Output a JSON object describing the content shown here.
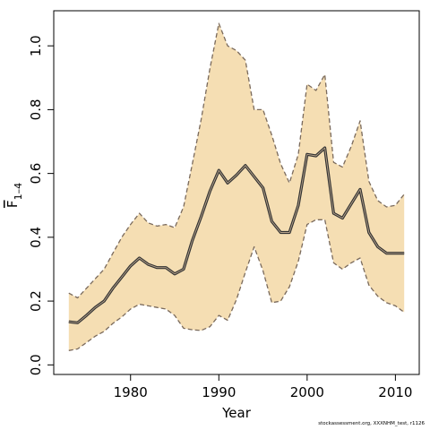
{
  "chart_data": {
    "type": "area",
    "xlabel": "Year",
    "ylabel_main": "F",
    "ylabel_sub": "1–4",
    "xlim": [
      1971.3,
      2012.7
    ],
    "ylim": [
      -0.03,
      1.11
    ],
    "xticks": [
      1980,
      1990,
      2000,
      2010
    ],
    "xtick_labels": [
      "1980",
      "1990",
      "2000",
      "2010"
    ],
    "yticks": [
      0.0,
      0.2,
      0.4,
      0.6,
      0.8,
      1.0
    ],
    "ytick_labels": [
      "0.0",
      "0.2",
      "0.4",
      "0.6",
      "0.8",
      "1.0"
    ],
    "grid": false,
    "colors": {
      "band": "#f5deb3",
      "bound_line": "#7a6a5c",
      "estimate_line": "#333333"
    },
    "x": [
      1973,
      1974,
      1975,
      1976,
      1977,
      1978,
      1979,
      1980,
      1981,
      1982,
      1983,
      1984,
      1985,
      1986,
      1987,
      1988,
      1989,
      1990,
      1991,
      1992,
      1993,
      1994,
      1995,
      1996,
      1997,
      1998,
      1999,
      2000,
      2001,
      2002,
      2003,
      2004,
      2005,
      2006,
      2007,
      2008,
      2009,
      2010,
      2011
    ],
    "series": [
      {
        "role": "estimate",
        "values": [
          0.135,
          0.132,
          0.155,
          0.18,
          0.2,
          0.24,
          0.275,
          0.31,
          0.335,
          0.315,
          0.305,
          0.305,
          0.285,
          0.3,
          0.39,
          0.465,
          0.545,
          0.61,
          0.57,
          0.595,
          0.625,
          0.59,
          0.555,
          0.45,
          0.415,
          0.415,
          0.5,
          0.66,
          0.655,
          0.68,
          0.475,
          0.46,
          0.505,
          0.55,
          0.415,
          0.37,
          0.35,
          0.35,
          0.35
        ]
      },
      {
        "role": "upper",
        "values": [
          0.225,
          0.21,
          0.24,
          0.27,
          0.3,
          0.35,
          0.4,
          0.44,
          0.475,
          0.445,
          0.435,
          0.44,
          0.43,
          0.495,
          0.63,
          0.77,
          0.93,
          1.07,
          1.0,
          0.985,
          0.955,
          0.8,
          0.8,
          0.72,
          0.63,
          0.57,
          0.66,
          0.88,
          0.86,
          0.91,
          0.635,
          0.62,
          0.685,
          0.765,
          0.575,
          0.515,
          0.495,
          0.5,
          0.535
        ]
      },
      {
        "role": "lower",
        "values": [
          0.045,
          0.05,
          0.07,
          0.09,
          0.105,
          0.13,
          0.15,
          0.175,
          0.19,
          0.185,
          0.18,
          0.175,
          0.155,
          0.115,
          0.11,
          0.108,
          0.12,
          0.155,
          0.14,
          0.205,
          0.29,
          0.37,
          0.295,
          0.195,
          0.2,
          0.245,
          0.325,
          0.44,
          0.455,
          0.455,
          0.32,
          0.3,
          0.32,
          0.335,
          0.25,
          0.215,
          0.195,
          0.185,
          0.165
        ]
      }
    ]
  },
  "footer": {
    "credit": "stockassessment.org, XXXNHM_test, r1126"
  }
}
